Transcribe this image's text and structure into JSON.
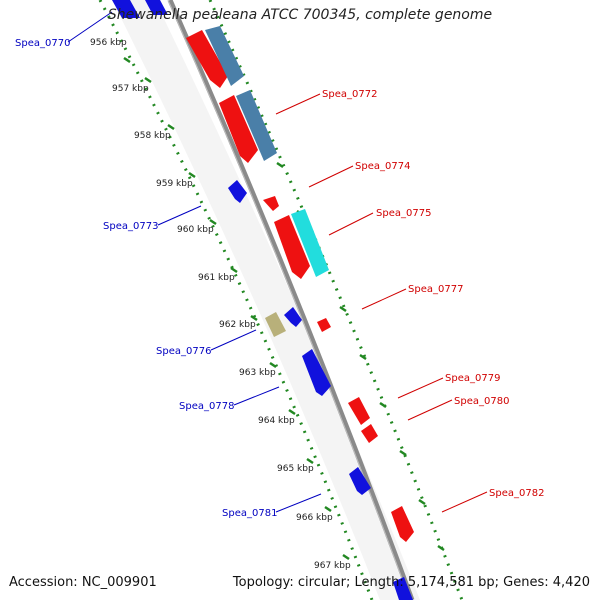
{
  "map": {
    "title": "Shewanella pealeana ATCC 700345, complete genome",
    "accession": "Accession: NC_009901",
    "stats": "Topology: circular; Length: 5,174,581 bp; Genes: 4,420"
  },
  "scale_labels": [
    "956 kbp",
    "957 kbp",
    "958 kbp",
    "959 kbp",
    "960 kbp",
    "961 kbp",
    "962 kbp",
    "963 kbp",
    "964 kbp",
    "965 kbp",
    "966 kbp",
    "967 kbp"
  ],
  "gene_labels": [
    {
      "text": "Spea_0770",
      "color": "#0000c0",
      "side": "left"
    },
    {
      "text": "Spea_0772",
      "color": "#d00000",
      "side": "right"
    },
    {
      "text": "Spea_0774",
      "color": "#d00000",
      "side": "right"
    },
    {
      "text": "Spea_0775",
      "color": "#d00000",
      "side": "right"
    },
    {
      "text": "Spea_0773",
      "color": "#0000c0",
      "side": "left"
    },
    {
      "text": "Spea_0777",
      "color": "#d00000",
      "side": "right"
    },
    {
      "text": "Spea_0776",
      "color": "#0000c0",
      "side": "left"
    },
    {
      "text": "Spea_0779",
      "color": "#d00000",
      "side": "right"
    },
    {
      "text": "Spea_0780",
      "color": "#d00000",
      "side": "right"
    },
    {
      "text": "Spea_0778",
      "color": "#0000c0",
      "side": "left"
    },
    {
      "text": "Spea_0782",
      "color": "#d00000",
      "side": "right"
    },
    {
      "text": "Spea_0781",
      "color": "#0000c0",
      "side": "left"
    }
  ],
  "colors": {
    "backbone": "#8c8c8c",
    "forward_cds": "#ee1111",
    "reverse_cds": "#1111dd",
    "forward_rna": "#4a7fa8",
    "reverse_rna": "#22dddd",
    "other": "#b8b07a",
    "ticks": "#228822"
  }
}
